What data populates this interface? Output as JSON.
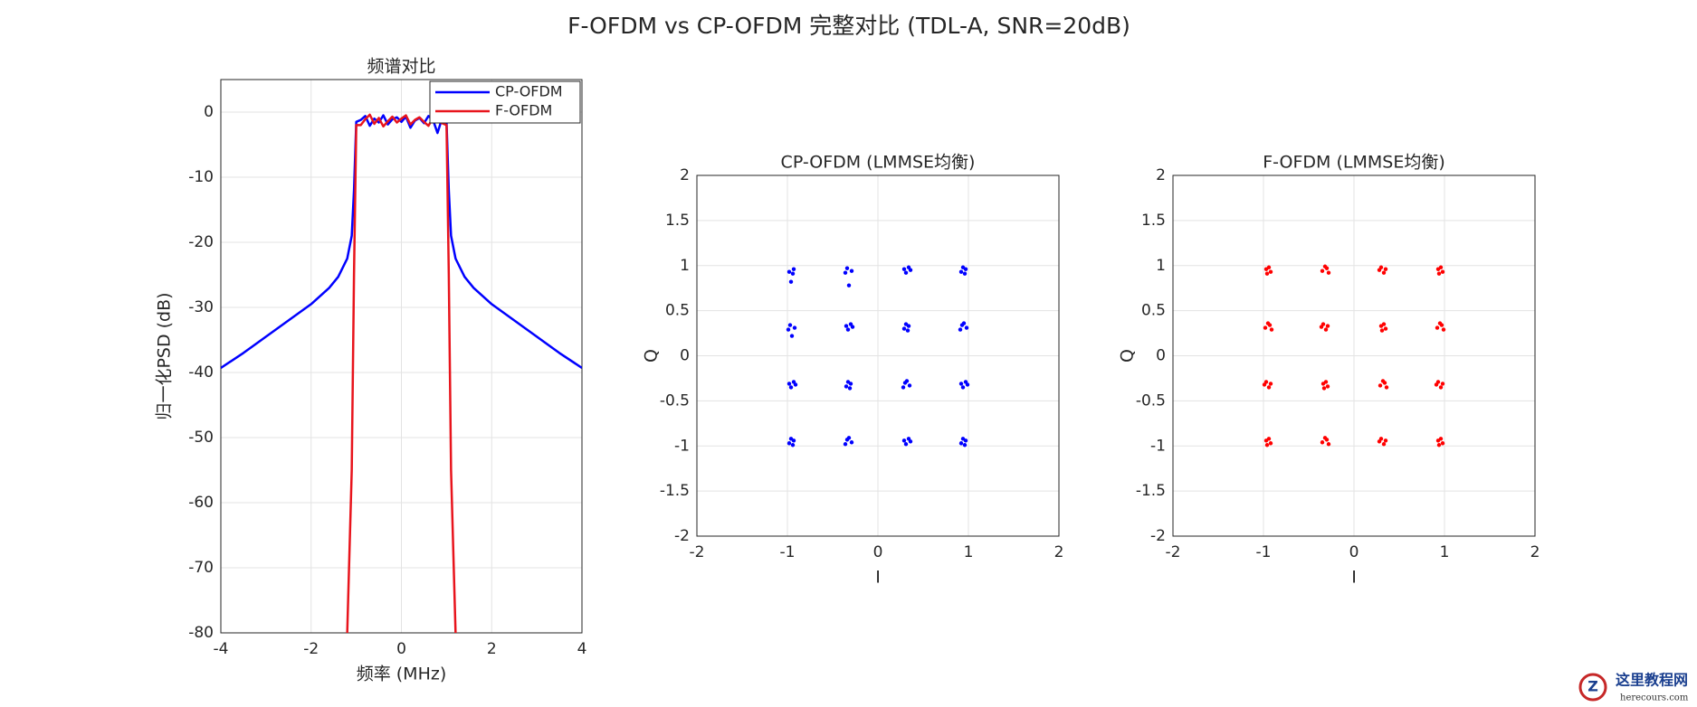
{
  "chart_data": [
    {
      "type": "line",
      "suptitle": "F-OFDM vs CP-OFDM 完整对比 (TDL-A, SNR=20dB)",
      "title": "频谱对比",
      "xlabel": "频率 (MHz)",
      "ylabel": "归一化PSD (dB)",
      "x": [
        -4,
        -3.5,
        -3,
        -2.5,
        -2,
        -1.6,
        -1.4,
        -1.2,
        -1.1,
        -1.05,
        -1,
        -0.9,
        -0.8,
        -0.7,
        -0.6,
        -0.5,
        -0.4,
        -0.3,
        -0.2,
        -0.1,
        0,
        0.1,
        0.2,
        0.3,
        0.4,
        0.5,
        0.6,
        0.7,
        0.8,
        0.9,
        1,
        1.05,
        1.1,
        1.2,
        1.4,
        1.6,
        2,
        2.5,
        3,
        3.5,
        4
      ],
      "series": [
        {
          "name": "CP-OFDM",
          "color": "#0000ff",
          "values": [
            -39.3,
            -37,
            -34.5,
            -32,
            -29.5,
            -27,
            -25.3,
            -22.5,
            -19,
            -12,
            -1.5,
            -1.2,
            -0.6,
            -2.1,
            -1.0,
            -1.6,
            -0.5,
            -1.9,
            -1.1,
            -0.8,
            -1.5,
            -0.7,
            -2.4,
            -1.3,
            -0.9,
            -1.7,
            -0.6,
            -1.2,
            -3.2,
            -1.0,
            -1.5,
            -12,
            -19,
            -22.5,
            -25.3,
            -27,
            -29.5,
            -32,
            -34.5,
            -37,
            -39.3
          ]
        },
        {
          "name": "F-OFDM",
          "color": "#e8141c",
          "values": [
            null,
            null,
            null,
            null,
            null,
            null,
            null,
            -80,
            -55,
            -25,
            -2,
            -2.0,
            -1.1,
            -0.4,
            -1.8,
            -0.9,
            -2.2,
            -1.4,
            -0.7,
            -1.6,
            -1.0,
            -0.5,
            -1.9,
            -1.2,
            -0.8,
            -1.5,
            -2.1,
            -0.9,
            -1.3,
            -1.7,
            -2,
            -25,
            -55,
            -80,
            null,
            null,
            null,
            null,
            null,
            null,
            null
          ]
        }
      ],
      "xlim": [
        -4,
        4
      ],
      "xticks": [
        -4,
        -2,
        0,
        2,
        4
      ],
      "ylim": [
        -80,
        5
      ],
      "yticks": [
        -80,
        -70,
        -60,
        -50,
        -40,
        -30,
        -20,
        -10,
        0
      ],
      "grid": true,
      "legend": "northeast"
    },
    {
      "type": "scatter",
      "title": "CP-OFDM (LMMSE均衡)",
      "xlabel": "I",
      "ylabel": "Q",
      "color": "#0000ff",
      "x": [
        -0.93,
        -0.98,
        -0.94,
        -0.96,
        -0.34,
        -0.29,
        -0.32,
        -0.36,
        0.36,
        0.31,
        0.34,
        0.29,
        0.97,
        0.92,
        0.96,
        0.94,
        -0.97,
        -0.92,
        -0.95,
        -0.99,
        -0.28,
        -0.33,
        -0.3,
        -0.35,
        0.34,
        0.29,
        0.33,
        0.31,
        0.93,
        0.98,
        0.95,
        0.91,
        -0.91,
        -0.96,
        -0.93,
        -0.98,
        -0.3,
        -0.35,
        -0.31,
        -0.33,
        0.3,
        0.35,
        0.32,
        0.28,
        0.99,
        0.94,
        0.97,
        0.92,
        -0.93,
        -0.98,
        -0.94,
        -0.96,
        -0.34,
        -0.29,
        -0.32,
        -0.36,
        0.36,
        0.31,
        0.34,
        0.29,
        0.97,
        0.92,
        0.96,
        0.94
      ],
      "values": [
        0.96,
        0.93,
        0.91,
        0.82,
        0.97,
        0.94,
        0.78,
        0.92,
        0.95,
        0.92,
        0.98,
        0.96,
        0.96,
        0.93,
        0.91,
        0.98,
        0.34,
        0.31,
        0.22,
        0.29,
        0.32,
        0.29,
        0.35,
        0.33,
        0.33,
        0.3,
        0.28,
        0.35,
        0.34,
        0.31,
        0.36,
        0.29,
        -0.32,
        -0.35,
        -0.29,
        -0.31,
        -0.31,
        -0.34,
        -0.36,
        -0.29,
        -0.3,
        -0.33,
        -0.28,
        -0.35,
        -0.32,
        -0.35,
        -0.29,
        -0.31,
        -0.94,
        -0.97,
        -0.99,
        -0.92,
        -0.93,
        -0.96,
        -0.91,
        -0.98,
        -0.95,
        -0.98,
        -0.92,
        -0.94,
        -0.94,
        -0.97,
        -0.99,
        -0.92
      ],
      "xlim": [
        -2,
        2
      ],
      "xticks": [
        -2,
        -1,
        0,
        1,
        2
      ],
      "ylim": [
        -2,
        2
      ],
      "yticks": [
        -2,
        -1.5,
        -1,
        -0.5,
        0,
        0.5,
        1,
        1.5,
        2
      ],
      "grid": true
    },
    {
      "type": "scatter",
      "title": "F-OFDM (LMMSE均衡)",
      "xlabel": "I",
      "ylabel": "Q",
      "color": "#ff0000",
      "x": [
        -0.97,
        -0.92,
        -0.96,
        -0.94,
        -0.3,
        -0.35,
        -0.32,
        -0.28,
        0.28,
        0.33,
        0.3,
        0.35,
        0.93,
        0.98,
        0.94,
        0.96,
        -0.93,
        -0.98,
        -0.95,
        -0.91,
        -0.36,
        -0.31,
        -0.34,
        -0.29,
        0.3,
        0.35,
        0.31,
        0.33,
        0.97,
        0.92,
        0.95,
        0.99,
        -0.99,
        -0.94,
        -0.97,
        -0.92,
        -0.34,
        -0.29,
        -0.33,
        -0.31,
        0.34,
        0.29,
        0.32,
        0.36,
        0.91,
        0.96,
        0.93,
        0.98,
        -0.97,
        -0.92,
        -0.96,
        -0.94,
        -0.3,
        -0.35,
        -0.32,
        -0.28,
        0.28,
        0.33,
        0.3,
        0.35,
        0.93,
        0.98,
        0.94,
        0.96
      ],
      "values": [
        0.96,
        0.93,
        0.91,
        0.98,
        0.97,
        0.94,
        0.99,
        0.92,
        0.95,
        0.92,
        0.98,
        0.96,
        0.96,
        0.93,
        0.91,
        0.98,
        0.34,
        0.31,
        0.36,
        0.29,
        0.32,
        0.29,
        0.35,
        0.33,
        0.33,
        0.3,
        0.28,
        0.35,
        0.34,
        0.31,
        0.36,
        0.29,
        -0.32,
        -0.35,
        -0.29,
        -0.31,
        -0.31,
        -0.34,
        -0.36,
        -0.29,
        -0.3,
        -0.33,
        -0.28,
        -0.35,
        -0.32,
        -0.35,
        -0.29,
        -0.31,
        -0.94,
        -0.97,
        -0.99,
        -0.92,
        -0.93,
        -0.96,
        -0.91,
        -0.98,
        -0.95,
        -0.98,
        -0.92,
        -0.94,
        -0.94,
        -0.97,
        -0.99,
        -0.92
      ],
      "xlim": [
        -2,
        2
      ],
      "xticks": [
        -2,
        -1,
        0,
        1,
        2
      ],
      "ylim": [
        -2,
        2
      ],
      "yticks": [
        -2,
        -1.5,
        -1,
        -0.5,
        0,
        0.5,
        1,
        1.5,
        2
      ],
      "grid": true
    }
  ],
  "watermark": {
    "name": "这里教程网",
    "url": "herecours.com"
  }
}
